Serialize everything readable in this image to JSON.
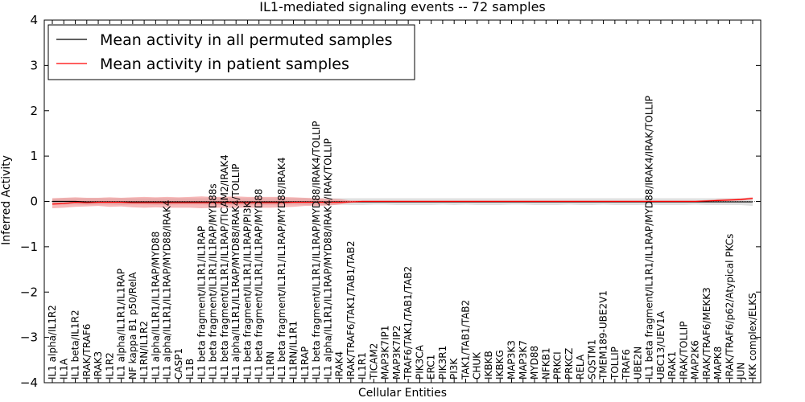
{
  "chart_data": {
    "type": "line",
    "title": "IL1-mediated signaling events -- 72 samples",
    "xlabel": "Cellular Entities",
    "ylabel": "Inferred Activity",
    "ylim": [
      -4,
      4
    ],
    "yticks": [
      -4,
      -3,
      -2,
      -1,
      0,
      1,
      2,
      3,
      4
    ],
    "ytick_labels": [
      "−4",
      "−3",
      "−2",
      "−1",
      "0",
      "1",
      "2",
      "3",
      "4"
    ],
    "legend_position": "top-left",
    "colors": {
      "permuted": "#000000",
      "patient": "#ff0000",
      "permuted_band": "#d3d3d3",
      "patient_band": "#f08080"
    },
    "categories": [
      "IL1 alpha/IL1R2",
      "IL1A",
      "IL1 beta/IL1R2",
      "IRAK/TRAF6",
      "IRAK3",
      "IL1R2",
      "IL1 alpha/IL1R1/IL1RAP",
      "NF kappa B1 p50/RelA",
      "IL1RN/IL1R2",
      "IL1 alpha/IL1R1/IL1RAP/MYD88",
      "IL1 alpha/IL1R1/IL1RAP/MYD88/IRAK4",
      "CASP1",
      "IL1B",
      "IL1 beta fragment/IL1R1/IL1RAP",
      "IL1 beta fragment/IL1R1/IL1RAP/MYD88s",
      "IL1 beta fragment/IL1R1/IL1RAP/TICAM2/IRAK4",
      "IL1 alpha/IL1R1/IL1RAP/MYD88/IRAK4/TOLLIP",
      "IL1 beta fragment/IL1R1/IL1RAP/PI3K",
      "IL1 beta fragment/IL1R1/IL1RAP/MYD88",
      "IL1RN",
      "IL1 beta fragment/IL1R1/IL1RAP/MYD88/IRAK4",
      "IL1RN/IL1R1",
      "IL1RAP",
      "IL1 beta fragment/IL1R1/IL1RAP/MYD88/IRAK4/TOLLIP",
      "IL1 alpha/IL1R1/IL1RAP/MYD88/IRAK4/IRAK/TOLLIP",
      "IRAK4",
      "IRAK/TRAF6/TAK1/TAB1/TAB2",
      "IL1R1",
      "TICAM2",
      "MAP3K7IP1",
      "MAP3K7IP2",
      "TRAF6/TAK1/TAB1/TAB2",
      "PIK3CA",
      "ERC1",
      "PIK3R1",
      "PI3K",
      "TAK1/TAB1/TAB2",
      "CHUK",
      "IKBKB",
      "IKBKG",
      "MAP3K3",
      "MAP3K7",
      "MYD88",
      "NFKB1",
      "PRKCI",
      "PRKCZ",
      "RELA",
      "SQSTM1",
      "TMEM189-UBE2V1",
      "TOLLIP",
      "TRAF6",
      "UBE2N",
      "IL1 beta fragment/IL1R1/IL1RAP/MYD88/IRAK4/IRAK/TOLLIP",
      "UBC13/UEV1A",
      "IRAK1",
      "IRAK/TOLLIP",
      "MAP2K6",
      "IRAK/TRAF6/MEKK3",
      "MAPK8",
      "IRAK/TRAF6/p62/Atypical PKCs",
      "JUN",
      "IKK complex/ELKS"
    ],
    "series": [
      {
        "name": "Mean activity in all permuted samples",
        "color": "#000000",
        "values": [
          0.0,
          0.0,
          0.0,
          -0.01,
          -0.01,
          -0.01,
          -0.01,
          -0.01,
          -0.01,
          -0.01,
          -0.01,
          -0.01,
          -0.01,
          -0.01,
          -0.01,
          -0.01,
          -0.01,
          -0.01,
          -0.01,
          -0.01,
          -0.01,
          -0.01,
          -0.01,
          -0.01,
          -0.01,
          -0.01,
          -0.01,
          -0.01,
          -0.01,
          -0.01,
          -0.01,
          -0.01,
          -0.01,
          -0.01,
          -0.01,
          -0.01,
          -0.01,
          -0.01,
          -0.01,
          -0.01,
          -0.01,
          -0.01,
          -0.01,
          -0.01,
          -0.01,
          -0.01,
          -0.01,
          -0.01,
          -0.01,
          -0.01,
          -0.01,
          -0.01,
          -0.01,
          -0.01,
          -0.01,
          -0.01,
          -0.01,
          -0.01,
          -0.01,
          -0.01,
          -0.01,
          -0.01
        ],
        "band_low": [
          -0.06,
          -0.07,
          -0.07,
          -0.08,
          -0.07,
          -0.07,
          -0.08,
          -0.07,
          -0.07,
          -0.08,
          -0.08,
          -0.07,
          -0.07,
          -0.07,
          -0.08,
          -0.08,
          -0.08,
          -0.08,
          -0.08,
          -0.08,
          -0.08,
          -0.07,
          -0.08,
          -0.08,
          -0.08,
          -0.07,
          -0.08,
          -0.08,
          -0.07,
          -0.07,
          -0.08,
          -0.08,
          -0.08,
          -0.08,
          -0.07,
          -0.08,
          -0.07,
          -0.08,
          -0.08,
          -0.08,
          -0.07,
          -0.07,
          -0.08,
          -0.08,
          -0.08,
          -0.07,
          -0.08,
          -0.08,
          -0.07,
          -0.08,
          -0.08,
          -0.08,
          -0.07,
          -0.08,
          -0.08,
          -0.08,
          -0.07,
          -0.08,
          -0.08,
          -0.08,
          -0.08,
          -0.1
        ],
        "band_high": [
          0.06,
          0.07,
          0.07,
          0.07,
          0.07,
          0.07,
          0.07,
          0.07,
          0.07,
          0.07,
          0.07,
          0.07,
          0.07,
          0.07,
          0.07,
          0.07,
          0.07,
          0.07,
          0.07,
          0.07,
          0.07,
          0.07,
          0.07,
          0.07,
          0.07,
          0.07,
          0.07,
          0.07,
          0.07,
          0.07,
          0.07,
          0.07,
          0.07,
          0.07,
          0.07,
          0.07,
          0.07,
          0.07,
          0.07,
          0.07,
          0.07,
          0.07,
          0.07,
          0.07,
          0.07,
          0.07,
          0.07,
          0.07,
          0.07,
          0.07,
          0.07,
          0.07,
          0.07,
          0.07,
          0.07,
          0.07,
          0.07,
          0.07,
          0.07,
          0.07,
          0.07,
          0.07
        ]
      },
      {
        "name": "Mean activity in patient samples",
        "color": "#ff0000",
        "values": [
          -0.06,
          -0.05,
          -0.02,
          -0.03,
          -0.02,
          -0.02,
          -0.02,
          -0.03,
          -0.03,
          -0.03,
          -0.03,
          -0.03,
          -0.03,
          -0.03,
          -0.03,
          -0.03,
          -0.03,
          -0.03,
          -0.03,
          -0.03,
          -0.03,
          -0.02,
          -0.02,
          -0.02,
          -0.02,
          -0.02,
          -0.01,
          0.0,
          0.0,
          0.0,
          0.0,
          0.0,
          0.0,
          0.0,
          0.0,
          0.0,
          0.0,
          0.0,
          0.0,
          0.0,
          0.0,
          0.0,
          0.0,
          0.0,
          0.0,
          0.0,
          0.0,
          0.0,
          0.0,
          0.0,
          0.0,
          0.0,
          0.0,
          0.0,
          0.0,
          0.0,
          0.0,
          0.01,
          0.02,
          0.03,
          0.04,
          0.07
        ],
        "band_low": [
          -0.15,
          -0.14,
          -0.12,
          -0.11,
          -0.1,
          -0.12,
          -0.11,
          -0.13,
          -0.14,
          -0.13,
          -0.14,
          -0.14,
          -0.14,
          -0.15,
          -0.14,
          -0.14,
          -0.14,
          -0.14,
          -0.14,
          -0.14,
          -0.13,
          -0.12,
          -0.1,
          -0.1,
          -0.09,
          -0.07,
          -0.03,
          -0.02,
          -0.02,
          -0.02,
          -0.02,
          -0.02,
          -0.02,
          -0.02,
          -0.02,
          -0.02,
          -0.02,
          -0.02,
          -0.02,
          -0.02,
          -0.02,
          -0.02,
          -0.02,
          -0.02,
          -0.02,
          -0.02,
          -0.02,
          -0.02,
          -0.02,
          -0.02,
          -0.02,
          -0.02,
          -0.02,
          -0.02,
          -0.02,
          -0.02,
          -0.02,
          -0.01,
          0.0,
          0.01,
          0.02,
          0.04
        ],
        "band_high": [
          0.07,
          0.08,
          0.09,
          0.08,
          0.08,
          0.09,
          0.08,
          0.09,
          0.1,
          0.09,
          0.1,
          0.09,
          0.1,
          0.11,
          0.1,
          0.1,
          0.11,
          0.1,
          0.1,
          0.1,
          0.1,
          0.09,
          0.08,
          0.07,
          0.06,
          0.05,
          0.02,
          0.02,
          0.02,
          0.02,
          0.02,
          0.02,
          0.02,
          0.02,
          0.02,
          0.02,
          0.02,
          0.02,
          0.02,
          0.02,
          0.02,
          0.02,
          0.02,
          0.02,
          0.02,
          0.02,
          0.02,
          0.02,
          0.02,
          0.02,
          0.02,
          0.02,
          0.02,
          0.02,
          0.02,
          0.02,
          0.02,
          0.03,
          0.05,
          0.06,
          0.07,
          0.09
        ]
      }
    ]
  }
}
